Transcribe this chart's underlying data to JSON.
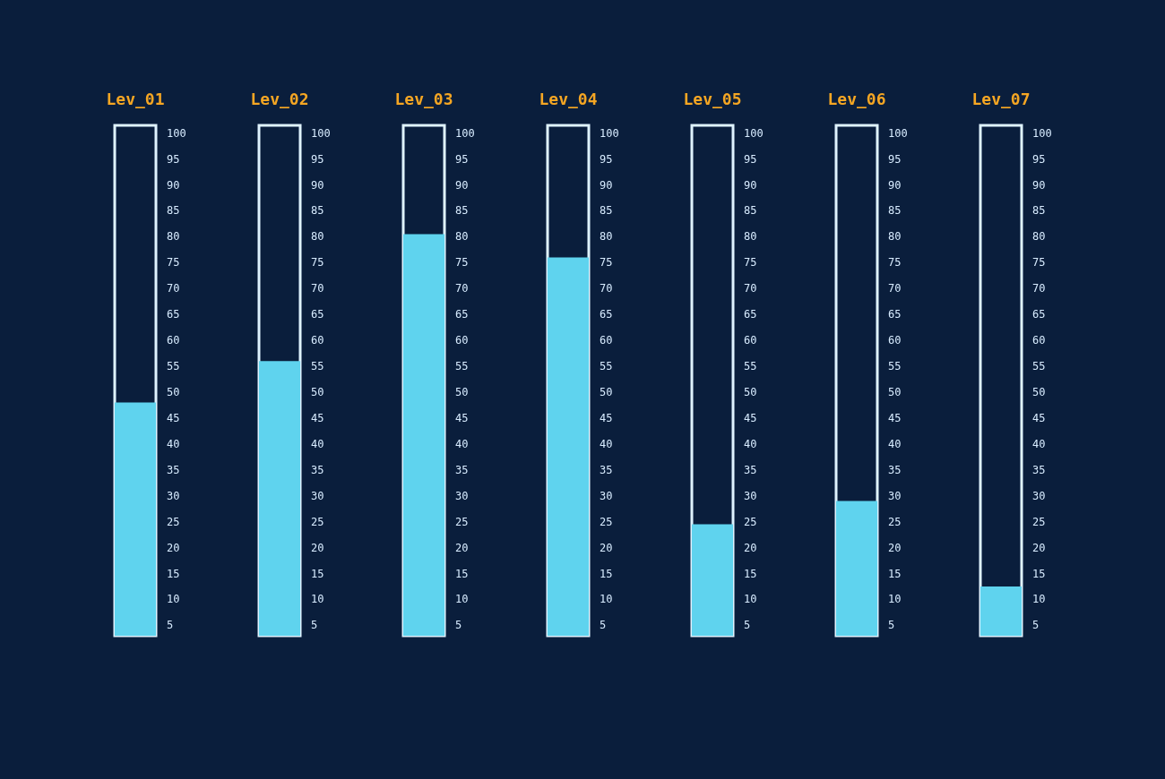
{
  "chart_data": [
    {
      "type": "bar",
      "categories": [
        "Lev_01"
      ],
      "values": [
        48
      ],
      "color": "#5fd3ee",
      "ylim": [
        3,
        101.5
      ],
      "yticks": [
        5,
        10,
        15,
        20,
        25,
        30,
        35,
        40,
        45,
        50,
        55,
        60,
        65,
        70,
        75,
        80,
        85,
        90,
        95,
        100
      ]
    },
    {
      "type": "bar",
      "categories": [
        "Lev_02"
      ],
      "values": [
        56
      ],
      "color": "#5fd3ee",
      "ylim": [
        3,
        101.5
      ],
      "yticks": [
        5,
        10,
        15,
        20,
        25,
        30,
        35,
        40,
        45,
        50,
        55,
        60,
        65,
        70,
        75,
        80,
        85,
        90,
        95,
        100
      ]
    },
    {
      "type": "bar",
      "categories": [
        "Lev_03"
      ],
      "values": [
        80.5
      ],
      "color": "#5fd3ee",
      "ylim": [
        3,
        101.5
      ],
      "yticks": [
        5,
        10,
        15,
        20,
        25,
        30,
        35,
        40,
        45,
        50,
        55,
        60,
        65,
        70,
        75,
        80,
        85,
        90,
        95,
        100
      ]
    },
    {
      "type": "bar",
      "categories": [
        "Lev_04"
      ],
      "values": [
        76
      ],
      "color": "#5fd3ee",
      "ylim": [
        3,
        101.5
      ],
      "yticks": [
        5,
        10,
        15,
        20,
        25,
        30,
        35,
        40,
        45,
        50,
        55,
        60,
        65,
        70,
        75,
        80,
        85,
        90,
        95,
        100
      ]
    },
    {
      "type": "bar",
      "categories": [
        "Lev_05"
      ],
      "values": [
        24.5
      ],
      "color": "#5fd3ee",
      "ylim": [
        3,
        101.5
      ],
      "yticks": [
        5,
        10,
        15,
        20,
        25,
        30,
        35,
        40,
        45,
        50,
        55,
        60,
        65,
        70,
        75,
        80,
        85,
        90,
        95,
        100
      ]
    },
    {
      "type": "bar",
      "categories": [
        "Lev_06"
      ],
      "values": [
        29
      ],
      "color": "#5fd3ee",
      "ylim": [
        3,
        101.5
      ],
      "yticks": [
        5,
        10,
        15,
        20,
        25,
        30,
        35,
        40,
        45,
        50,
        55,
        60,
        65,
        70,
        75,
        80,
        85,
        90,
        95,
        100
      ]
    },
    {
      "type": "bar",
      "categories": [
        "Lev_07"
      ],
      "values": [
        12.5
      ],
      "color": "#5fd3ee",
      "ylim": [
        3,
        101.5
      ],
      "yticks": [
        5,
        10,
        15,
        20,
        25,
        30,
        35,
        40,
        45,
        50,
        55,
        60,
        65,
        70,
        75,
        80,
        85,
        90,
        95,
        100
      ]
    }
  ]
}
